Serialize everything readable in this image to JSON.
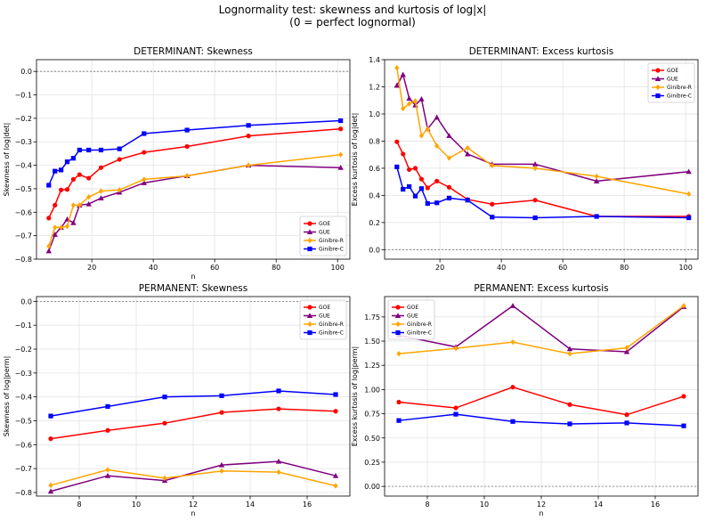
{
  "figure": {
    "suptitle_line1": "Lognormality test: skewness and kurtosis of log|x|",
    "suptitle_line2": "(0 = perfect lognormal)"
  },
  "series_styles": [
    {
      "name": "GOE",
      "color": "#ff0000",
      "marker": "circle"
    },
    {
      "name": "GUE",
      "color": "#800080",
      "marker": "triangle"
    },
    {
      "name": "Ginibre-R",
      "color": "#ffa500",
      "marker": "diamond"
    },
    {
      "name": "Ginibre-C",
      "color": "#0000ff",
      "marker": "square"
    }
  ],
  "chart_data": [
    {
      "type": "line",
      "title": "DETERMINANT: Skewness",
      "xlabel": "n",
      "ylabel": "Skewness of log|det|",
      "xlim": [
        2,
        104
      ],
      "ylim": [
        -0.8,
        0.05
      ],
      "xticks": [
        20,
        40,
        60,
        80,
        100
      ],
      "yticks": [
        0.0,
        -0.1,
        -0.2,
        -0.3,
        -0.4,
        -0.5,
        -0.6,
        -0.7,
        -0.8
      ],
      "ytick_labels": [
        "0.0",
        "−0.1",
        "−0.2",
        "−0.3",
        "−0.4",
        "−0.5",
        "−0.6",
        "−0.7",
        "−0.8"
      ],
      "xtick_labels": [
        "20",
        "40",
        "60",
        "80",
        "100"
      ],
      "grid": true,
      "legend": "lower-right",
      "x": [
        6,
        8,
        10,
        12,
        14,
        16,
        19,
        23,
        29,
        37,
        51,
        71,
        101
      ],
      "series": [
        {
          "name": "GOE",
          "values": [
            -0.625,
            -0.57,
            -0.505,
            -0.503,
            -0.46,
            -0.44,
            -0.455,
            -0.41,
            -0.375,
            -0.345,
            -0.32,
            -0.275,
            -0.245
          ]
        },
        {
          "name": "GUE",
          "values": [
            -0.765,
            -0.695,
            -0.665,
            -0.63,
            -0.645,
            -0.57,
            -0.565,
            -0.54,
            -0.515,
            -0.475,
            -0.445,
            -0.4,
            -0.41
          ]
        },
        {
          "name": "Ginibre-R",
          "values": [
            -0.745,
            -0.665,
            -0.665,
            -0.66,
            -0.57,
            -0.57,
            -0.535,
            -0.51,
            -0.505,
            -0.46,
            -0.445,
            -0.4,
            -0.355
          ]
        },
        {
          "name": "Ginibre-C",
          "values": [
            -0.485,
            -0.425,
            -0.42,
            -0.385,
            -0.37,
            -0.335,
            -0.335,
            -0.335,
            -0.33,
            -0.265,
            -0.25,
            -0.23,
            -0.21
          ]
        }
      ]
    },
    {
      "type": "line",
      "title": "DETERMINANT: Excess kurtosis",
      "xlabel": "",
      "ylabel": "Excess kurtosis of log|det|",
      "xlim": [
        2,
        104
      ],
      "ylim": [
        -0.07,
        1.4
      ],
      "xticks": [
        20,
        40,
        60,
        80,
        100
      ],
      "yticks": [
        0.0,
        0.2,
        0.4,
        0.6,
        0.8,
        1.0,
        1.2,
        1.4
      ],
      "ytick_labels": [
        "0.0",
        "0.2",
        "0.4",
        "0.6",
        "0.8",
        "1.0",
        "1.2",
        "1.4"
      ],
      "xtick_labels": [
        "20",
        "40",
        "60",
        "80",
        "100"
      ],
      "grid": true,
      "legend": "top-right",
      "x": [
        6,
        8,
        10,
        12,
        14,
        16,
        19,
        23,
        29,
        37,
        51,
        71,
        101
      ],
      "series": [
        {
          "name": "GOE",
          "values": [
            0.795,
            0.705,
            0.59,
            0.6,
            0.52,
            0.455,
            0.505,
            0.46,
            0.37,
            0.335,
            0.365,
            0.245,
            0.245
          ]
        },
        {
          "name": "GUE",
          "values": [
            1.21,
            1.29,
            1.115,
            1.065,
            1.11,
            0.89,
            0.975,
            0.84,
            0.705,
            0.63,
            0.63,
            0.505,
            0.575
          ]
        },
        {
          "name": "Ginibre-R",
          "values": [
            1.34,
            1.04,
            1.075,
            1.095,
            0.84,
            0.89,
            0.765,
            0.675,
            0.75,
            0.62,
            0.6,
            0.54,
            0.41
          ]
        },
        {
          "name": "Ginibre-C",
          "values": [
            0.61,
            0.445,
            0.465,
            0.395,
            0.45,
            0.34,
            0.345,
            0.38,
            0.365,
            0.24,
            0.235,
            0.245,
            0.235
          ]
        }
      ]
    },
    {
      "type": "line",
      "title": "PERMANENT: Skewness",
      "xlabel": "n",
      "ylabel": "Skewness of log|perm|",
      "xlim": [
        6.5,
        17.5
      ],
      "ylim": [
        -0.815,
        0.02
      ],
      "xticks": [
        8,
        10,
        12,
        14,
        16
      ],
      "yticks": [
        0.0,
        -0.1,
        -0.2,
        -0.3,
        -0.4,
        -0.5,
        -0.6,
        -0.7,
        -0.8
      ],
      "ytick_labels": [
        "0.0",
        "−0.1",
        "−0.2",
        "−0.3",
        "−0.4",
        "−0.5",
        "−0.6",
        "−0.7",
        "−0.8"
      ],
      "xtick_labels": [
        "8",
        "10",
        "12",
        "14",
        "16"
      ],
      "grid": true,
      "legend": "top-right",
      "x": [
        7,
        9,
        11,
        13,
        15,
        17
      ],
      "series": [
        {
          "name": "GOE",
          "values": [
            -0.575,
            -0.54,
            -0.51,
            -0.465,
            -0.45,
            -0.46
          ]
        },
        {
          "name": "GUE",
          "values": [
            -0.795,
            -0.73,
            -0.75,
            -0.685,
            -0.67,
            -0.73
          ]
        },
        {
          "name": "Ginibre-R",
          "values": [
            -0.77,
            -0.705,
            -0.74,
            -0.71,
            -0.715,
            -0.772
          ]
        },
        {
          "name": "Ginibre-C",
          "values": [
            -0.48,
            -0.44,
            -0.4,
            -0.395,
            -0.375,
            -0.39
          ]
        }
      ]
    },
    {
      "type": "line",
      "title": "PERMANENT: Excess kurtosis",
      "xlabel": "n",
      "ylabel": "Excess kurtosis of log|perm|",
      "xlim": [
        6.5,
        17.5
      ],
      "ylim": [
        -0.1,
        1.96
      ],
      "xticks": [
        8,
        10,
        12,
        14,
        16
      ],
      "yticks": [
        0.0,
        0.25,
        0.5,
        0.75,
        1.0,
        1.25,
        1.5,
        1.75
      ],
      "ytick_labels": [
        "0.00",
        "0.25",
        "0.50",
        "0.75",
        "1.00",
        "1.25",
        "1.50",
        "1.75"
      ],
      "xtick_labels": [
        "8",
        "10",
        "12",
        "14",
        "16"
      ],
      "grid": true,
      "legend": "top-left",
      "x": [
        7,
        9,
        11,
        13,
        15,
        17
      ],
      "series": [
        {
          "name": "GOE",
          "values": [
            0.87,
            0.81,
            1.025,
            0.845,
            0.74,
            0.93
          ]
        },
        {
          "name": "GUE",
          "values": [
            1.56,
            1.44,
            1.865,
            1.42,
            1.39,
            1.855
          ]
        },
        {
          "name": "Ginibre-R",
          "values": [
            1.37,
            1.425,
            1.49,
            1.37,
            1.43,
            1.865
          ]
        },
        {
          "name": "Ginibre-C",
          "values": [
            0.68,
            0.745,
            0.67,
            0.645,
            0.655,
            0.625
          ]
        }
      ]
    }
  ]
}
